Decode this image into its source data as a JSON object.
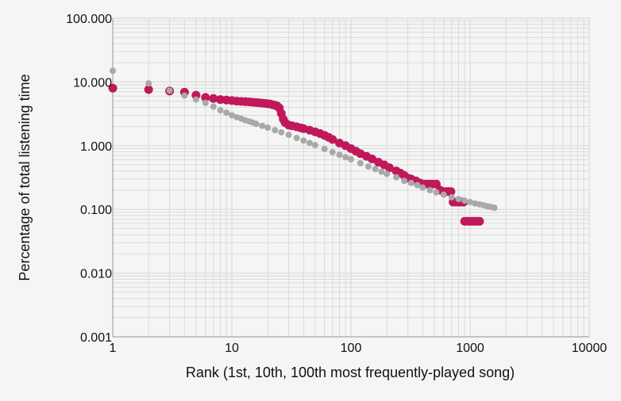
{
  "chart_data": {
    "type": "scatter",
    "title": "",
    "xlabel": "Rank (1st, 10th, 100th most frequently-played song)",
    "ylabel": "Percentage of total listening time",
    "x_scale": "log",
    "y_scale": "log",
    "xlim": [
      1,
      10000
    ],
    "ylim": [
      0.001,
      100
    ],
    "x_ticks": [
      1,
      10,
      100,
      1000,
      10000
    ],
    "x_tick_labels": [
      "1",
      "10",
      "100",
      "1000",
      "10000"
    ],
    "y_ticks": [
      0.001,
      0.01,
      0.1,
      1,
      10,
      100
    ],
    "y_tick_labels": [
      "0.001",
      "0.010",
      "0.100",
      "1.000",
      "10.000",
      "100.000"
    ],
    "grid": true,
    "legend": "none",
    "colors": {
      "background": "#f5f5f5",
      "grid": "#dadada",
      "series_1": "#c0185a",
      "series_2": "#a9a9a9"
    },
    "series": [
      {
        "color": "#c0185a",
        "points": [
          [
            1,
            8.0
          ],
          [
            2,
            7.6
          ],
          [
            3,
            7.2
          ],
          [
            4,
            6.9
          ],
          [
            5,
            6.2
          ],
          [
            6,
            5.7
          ],
          [
            7,
            5.5
          ],
          [
            8,
            5.3
          ],
          [
            9,
            5.2
          ],
          [
            10,
            5.1
          ],
          [
            11,
            5.0
          ],
          [
            12,
            4.95
          ],
          [
            13,
            4.9
          ],
          [
            14,
            4.85
          ],
          [
            15,
            4.8
          ],
          [
            16,
            4.75
          ],
          [
            17,
            4.7
          ],
          [
            18,
            4.65
          ],
          [
            19,
            4.6
          ],
          [
            20,
            4.55
          ],
          [
            21,
            4.5
          ],
          [
            22,
            4.4
          ],
          [
            23,
            4.3
          ],
          [
            24,
            4.2
          ],
          [
            25,
            3.9
          ],
          [
            26,
            3.2
          ],
          [
            27,
            2.6
          ],
          [
            28,
            2.3
          ],
          [
            30,
            2.1
          ],
          [
            32,
            2.05
          ],
          [
            35,
            1.98
          ],
          [
            38,
            1.9
          ],
          [
            40,
            1.85
          ],
          [
            45,
            1.75
          ],
          [
            50,
            1.65
          ],
          [
            55,
            1.55
          ],
          [
            60,
            1.45
          ],
          [
            65,
            1.35
          ],
          [
            70,
            1.25
          ],
          [
            80,
            1.1
          ],
          [
            90,
            1.0
          ],
          [
            100,
            0.9
          ],
          [
            110,
            0.82
          ],
          [
            120,
            0.75
          ],
          [
            135,
            0.68
          ],
          [
            150,
            0.62
          ],
          [
            170,
            0.55
          ],
          [
            190,
            0.5
          ],
          [
            210,
            0.45
          ],
          [
            240,
            0.4
          ],
          [
            260,
            0.37
          ],
          [
            280,
            0.34
          ],
          [
            300,
            0.31
          ],
          [
            320,
            0.3
          ],
          [
            350,
            0.28
          ],
          [
            380,
            0.26
          ],
          [
            420,
            0.25
          ],
          [
            450,
            0.25
          ],
          [
            480,
            0.25
          ],
          [
            520,
            0.25
          ],
          [
            560,
            0.2
          ],
          [
            600,
            0.19
          ],
          [
            630,
            0.19
          ],
          [
            660,
            0.19
          ],
          [
            690,
            0.19
          ],
          [
            720,
            0.13
          ],
          [
            760,
            0.13
          ],
          [
            800,
            0.13
          ],
          [
            840,
            0.13
          ],
          [
            880,
            0.13
          ],
          [
            900,
            0.065
          ],
          [
            950,
            0.065
          ],
          [
            1000,
            0.065
          ],
          [
            1050,
            0.065
          ],
          [
            1100,
            0.065
          ],
          [
            1150,
            0.065
          ],
          [
            1200,
            0.065
          ]
        ]
      },
      {
        "color": "#a9a9a9",
        "points": [
          [
            1,
            15.0
          ],
          [
            2,
            9.5
          ],
          [
            3,
            7.3
          ],
          [
            4,
            6.1
          ],
          [
            5,
            5.3
          ],
          [
            6,
            4.7
          ],
          [
            7,
            4.1
          ],
          [
            8,
            3.6
          ],
          [
            9,
            3.3
          ],
          [
            10,
            3.0
          ],
          [
            11,
            2.8
          ],
          [
            12,
            2.65
          ],
          [
            13,
            2.5
          ],
          [
            14,
            2.4
          ],
          [
            15,
            2.3
          ],
          [
            16,
            2.2
          ],
          [
            18,
            2.05
          ],
          [
            20,
            1.92
          ],
          [
            23,
            1.75
          ],
          [
            26,
            1.62
          ],
          [
            30,
            1.48
          ],
          [
            35,
            1.32
          ],
          [
            40,
            1.2
          ],
          [
            45,
            1.1
          ],
          [
            50,
            1.02
          ],
          [
            60,
            0.89
          ],
          [
            70,
            0.79
          ],
          [
            80,
            0.72
          ],
          [
            90,
            0.66
          ],
          [
            100,
            0.61
          ],
          [
            120,
            0.53
          ],
          [
            140,
            0.47
          ],
          [
            160,
            0.43
          ],
          [
            180,
            0.39
          ],
          [
            200,
            0.36
          ],
          [
            240,
            0.32
          ],
          [
            280,
            0.28
          ],
          [
            320,
            0.26
          ],
          [
            360,
            0.24
          ],
          [
            400,
            0.22
          ],
          [
            460,
            0.2
          ],
          [
            520,
            0.185
          ],
          [
            600,
            0.17
          ],
          [
            700,
            0.155
          ],
          [
            800,
            0.145
          ],
          [
            900,
            0.137
          ],
          [
            1000,
            0.13
          ],
          [
            1100,
            0.124
          ],
          [
            1200,
            0.12
          ],
          [
            1300,
            0.116
          ],
          [
            1400,
            0.112
          ],
          [
            1500,
            0.109
          ],
          [
            1600,
            0.106
          ]
        ]
      }
    ]
  }
}
